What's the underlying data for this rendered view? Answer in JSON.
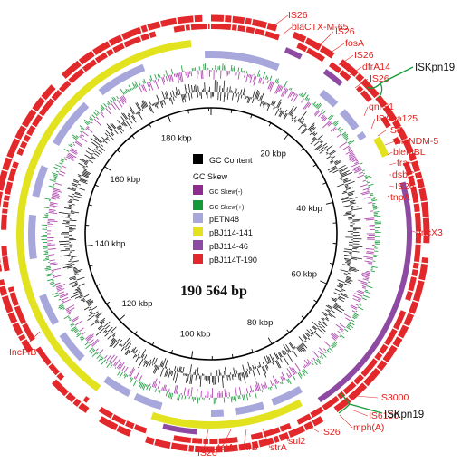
{
  "genome_size": "190 564 bp",
  "ticks": [
    {
      "label": "20 kbp",
      "kb": 20
    },
    {
      "label": "40 kbp",
      "kb": 40
    },
    {
      "label": "60 kbp",
      "kb": 60
    },
    {
      "label": "80 kbp",
      "kb": 80
    },
    {
      "label": "100 kbp",
      "kb": 100
    },
    {
      "label": "120 kbp",
      "kb": 120
    },
    {
      "label": "140 kbp",
      "kb": 140
    },
    {
      "label": "160 kbp",
      "kb": 160
    },
    {
      "label": "180 kbp",
      "kb": 180
    }
  ],
  "legend": [
    {
      "label": "GC Content",
      "color": "#000000",
      "small": false
    },
    {
      "label": "GC Skew",
      "color": "",
      "small": false
    },
    {
      "label": "GC Skew(-)",
      "color": "#8e2b8e",
      "small": true
    },
    {
      "label": "GC Skew(+)",
      "color": "#159a3a",
      "small": true
    },
    {
      "label": "pETN48",
      "color": "#a7a7dc",
      "small": false
    },
    {
      "label": "pBJ114-141",
      "color": "#e2e21e",
      "small": false
    },
    {
      "label": "pBJ114-46",
      "color": "#8e4aa3",
      "small": false
    },
    {
      "label": "pBJ114T-190",
      "color": "#e2282a",
      "small": false
    }
  ],
  "gene_labels": [
    {
      "text": "IS26"
    },
    {
      "text": "blaCTX-M-65"
    },
    {
      "text": "IS26"
    },
    {
      "text": "fosA"
    },
    {
      "text": "IS26"
    },
    {
      "text": "dfrA14"
    },
    {
      "text": "IS26"
    },
    {
      "text": "qnrS1"
    },
    {
      "text": "ISAba125"
    },
    {
      "text": "IS5"
    },
    {
      "text": "blaNDM-5"
    },
    {
      "text": "bleMBL"
    },
    {
      "text": "traF"
    },
    {
      "text": "dsbC"
    },
    {
      "text": "IS26"
    },
    {
      "text": "tnpA"
    },
    {
      "text": "IncX3"
    },
    {
      "text": "IncFIB"
    },
    {
      "text": "IS3000"
    },
    {
      "text": "IS6100"
    },
    {
      "text": "mph(A)"
    },
    {
      "text": "IS26"
    },
    {
      "text": "sul2"
    },
    {
      "text": "strA"
    },
    {
      "text": "strB"
    },
    {
      "text": "tetA"
    },
    {
      "text": "IS26"
    }
  ],
  "isk_labels": [
    {
      "text": "ISKpn19"
    },
    {
      "text": "ISKpn19"
    }
  ]
}
